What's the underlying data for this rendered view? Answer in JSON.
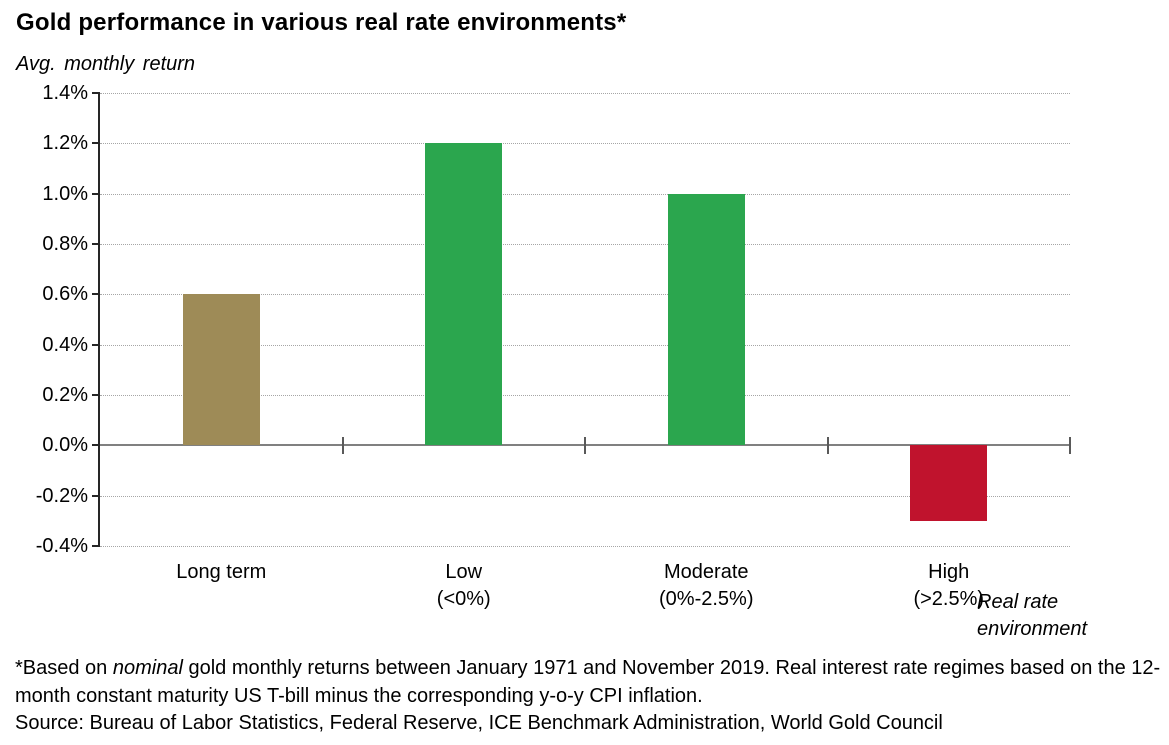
{
  "title": "Gold performance in various real rate environments*",
  "chart_data": {
    "type": "bar",
    "title": "Gold performance in various real rate environments*",
    "ylabel": "Avg. monthly return",
    "xlabel": "Real rate environment",
    "categories": [
      "Long term",
      "Low\n(<0%)",
      "Moderate\n(0%-2.5%)",
      "High\n(>2.5%)"
    ],
    "values": [
      0.6,
      1.2,
      1.0,
      -0.3
    ],
    "bar_colors": [
      "#9E8B57",
      "#2BA64E",
      "#2BA64E",
      "#C0132D"
    ],
    "ylim": [
      -0.4,
      1.4
    ],
    "yticks": [
      1.4,
      1.2,
      1.0,
      0.8,
      0.6,
      0.4,
      0.2,
      0.0,
      -0.2,
      -0.4
    ],
    "ytick_labels": [
      "1.4%",
      "1.2%",
      "1.0%",
      "0.8%",
      "0.6%",
      "0.4%",
      "0.2%",
      "0.0%",
      "-0.2%",
      "-0.4%"
    ],
    "grid": "horizontal-dotted",
    "legend": "none",
    "zero_line": "solid-gray"
  },
  "footnote": {
    "part1": "*Based on ",
    "italic_word": "nominal",
    "part2": " gold monthly returns between January 1971 and November 2019. Real interest rate regimes based on the 12-month constant maturity US T-bill minus the corresponding y-o-y CPI inflation.",
    "source": "Source: Bureau of Labor Statistics, Federal Reserve, ICE Benchmark Administration, World Gold Council"
  }
}
